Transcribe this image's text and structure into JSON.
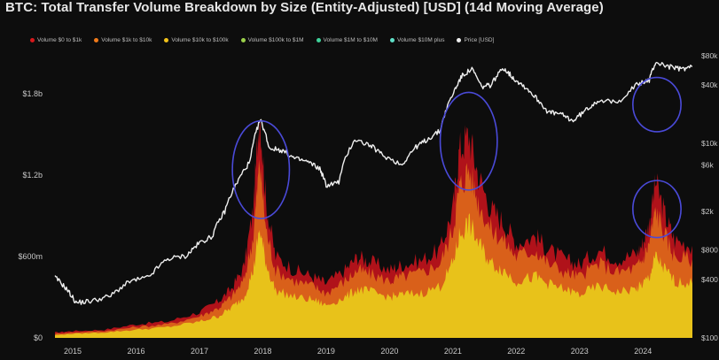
{
  "chart_data": {
    "type": "area",
    "title": "BTC: Total Transfer Volume Breakdown by Size (Entity-Adjusted) [USD] (14d Moving Average)",
    "legend": [
      {
        "name": "Volume $0 to $1k",
        "color": "#d7191c"
      },
      {
        "name": "Volume $1k to $10k",
        "color": "#f07a1a"
      },
      {
        "name": "Volume $10k to $100k",
        "color": "#f2c21a"
      },
      {
        "name": "Volume $100k to $1M",
        "color": "#9bd04a"
      },
      {
        "name": "Volume $1M to $10M",
        "color": "#3fd29a"
      },
      {
        "name": "Volume $10M plus",
        "color": "#5fe0c8"
      },
      {
        "name": "Price [USD]",
        "color": "#eeeeee"
      }
    ],
    "legend_placement": "top-left",
    "x_tick_labels": [
      "2015",
      "2016",
      "2017",
      "2018",
      "2019",
      "2020",
      "2021",
      "2022",
      "2023",
      "2024"
    ],
    "x_ticks": [
      2015,
      2016,
      2017,
      2018,
      2019,
      2020,
      2021,
      2022,
      2023,
      2024
    ],
    "xlim": [
      2014.72,
      2024.78
    ],
    "y_left_tick_labels": [
      "$0",
      "$600m",
      "$1.2b",
      "$1.8b"
    ],
    "y_left_ticks": [
      0,
      0.6,
      1.2,
      1.8
    ],
    "y_left_unit": "billions USD",
    "ylim_left": [
      0,
      2.1
    ],
    "y_right_tick_labels": [
      "$100",
      "$400",
      "$800",
      "$2k",
      "$6k",
      "$10k",
      "$40k",
      "$80k"
    ],
    "y_right_ticks": [
      100,
      400,
      800,
      2000,
      6000,
      10000,
      40000,
      80000
    ],
    "ylim_right": [
      100,
      85000
    ],
    "y_right_scale": "log",
    "grid": false,
    "series": [
      {
        "name": "Volume $10k to $100k",
        "color": "#e8c21a",
        "x": [
          2014.72,
          2015.0,
          2015.5,
          2016.0,
          2016.5,
          2017.0,
          2017.3,
          2017.5,
          2017.7,
          2017.85,
          2017.95,
          2018.05,
          2018.2,
          2018.5,
          2018.8,
          2019.0,
          2019.3,
          2019.5,
          2019.7,
          2020.0,
          2020.2,
          2020.5,
          2020.8,
          2021.0,
          2021.1,
          2021.25,
          2021.4,
          2021.6,
          2021.8,
          2022.0,
          2022.3,
          2022.5,
          2022.8,
          2023.0,
          2023.3,
          2023.6,
          2023.9,
          2024.0,
          2024.1,
          2024.2,
          2024.35,
          2024.5,
          2024.78
        ],
        "values": [
          0.02,
          0.03,
          0.04,
          0.06,
          0.08,
          0.12,
          0.16,
          0.22,
          0.3,
          0.5,
          0.8,
          0.55,
          0.35,
          0.3,
          0.28,
          0.24,
          0.3,
          0.36,
          0.34,
          0.3,
          0.32,
          0.33,
          0.38,
          0.55,
          0.75,
          0.85,
          0.7,
          0.55,
          0.5,
          0.42,
          0.45,
          0.4,
          0.35,
          0.32,
          0.38,
          0.34,
          0.36,
          0.4,
          0.45,
          0.6,
          0.5,
          0.42,
          0.4
        ]
      },
      {
        "name": "Volume $1k to $10k",
        "color": "#d9601a",
        "x": [
          2014.72,
          2015.0,
          2015.5,
          2016.0,
          2016.5,
          2017.0,
          2017.3,
          2017.5,
          2017.7,
          2017.85,
          2017.95,
          2018.05,
          2018.2,
          2018.5,
          2018.8,
          2019.0,
          2019.3,
          2019.5,
          2019.7,
          2020.0,
          2020.2,
          2020.5,
          2020.8,
          2021.0,
          2021.1,
          2021.25,
          2021.4,
          2021.6,
          2021.8,
          2022.0,
          2022.3,
          2022.5,
          2022.8,
          2023.0,
          2023.3,
          2023.6,
          2023.9,
          2024.0,
          2024.1,
          2024.2,
          2024.35,
          2024.5,
          2024.78
        ],
        "values": [
          0.03,
          0.04,
          0.05,
          0.08,
          0.1,
          0.16,
          0.22,
          0.3,
          0.42,
          0.75,
          1.3,
          0.8,
          0.5,
          0.42,
          0.38,
          0.33,
          0.42,
          0.5,
          0.47,
          0.42,
          0.45,
          0.48,
          0.55,
          0.8,
          1.1,
          1.25,
          1.0,
          0.8,
          0.72,
          0.6,
          0.65,
          0.55,
          0.48,
          0.45,
          0.55,
          0.48,
          0.52,
          0.58,
          0.7,
          0.95,
          0.75,
          0.6,
          0.58
        ]
      },
      {
        "name": "Volume $0 to $1k",
        "color": "#b0121a",
        "x": [
          2014.72,
          2015.0,
          2015.5,
          2016.0,
          2016.5,
          2017.0,
          2017.3,
          2017.5,
          2017.7,
          2017.85,
          2017.95,
          2018.05,
          2018.2,
          2018.5,
          2018.8,
          2019.0,
          2019.3,
          2019.5,
          2019.7,
          2020.0,
          2020.2,
          2020.5,
          2020.8,
          2021.0,
          2021.1,
          2021.25,
          2021.4,
          2021.6,
          2021.8,
          2022.0,
          2022.3,
          2022.5,
          2022.8,
          2023.0,
          2023.3,
          2023.6,
          2023.9,
          2024.0,
          2024.1,
          2024.2,
          2024.35,
          2024.5,
          2024.78
        ],
        "values": [
          0.04,
          0.05,
          0.06,
          0.1,
          0.12,
          0.19,
          0.27,
          0.36,
          0.52,
          0.95,
          1.68,
          1.0,
          0.6,
          0.5,
          0.45,
          0.4,
          0.5,
          0.6,
          0.56,
          0.5,
          0.54,
          0.57,
          0.65,
          0.95,
          1.38,
          1.5,
          1.2,
          0.95,
          0.85,
          0.7,
          0.75,
          0.65,
          0.57,
          0.54,
          0.65,
          0.58,
          0.62,
          0.7,
          0.85,
          1.15,
          0.9,
          0.72,
          0.68
        ]
      },
      {
        "name": "Price [USD]",
        "color": "#eeeeee",
        "axis": "right",
        "x": [
          2014.72,
          2014.9,
          2015.05,
          2015.3,
          2015.6,
          2015.9,
          2016.2,
          2016.5,
          2016.8,
          2017.0,
          2017.2,
          2017.4,
          2017.6,
          2017.8,
          2017.96,
          2018.1,
          2018.3,
          2018.5,
          2018.7,
          2018.9,
          2019.0,
          2019.2,
          2019.45,
          2019.7,
          2019.9,
          2020.2,
          2020.4,
          2020.6,
          2020.8,
          2021.0,
          2021.15,
          2021.3,
          2021.45,
          2021.6,
          2021.8,
          2021.95,
          2022.1,
          2022.3,
          2022.5,
          2022.7,
          2022.9,
          2023.1,
          2023.3,
          2023.6,
          2023.9,
          2024.1,
          2024.2,
          2024.4,
          2024.6,
          2024.78
        ],
        "values": [
          420,
          320,
          230,
          240,
          270,
          380,
          420,
          650,
          700,
          950,
          1100,
          2000,
          4000,
          6500,
          17500,
          9000,
          8500,
          7000,
          6500,
          5500,
          3700,
          4000,
          11000,
          9500,
          7500,
          6000,
          9000,
          11000,
          13500,
          32000,
          50000,
          58000,
          38000,
          40000,
          60000,
          47000,
          40000,
          30000,
          21000,
          20000,
          17000,
          22000,
          28000,
          26000,
          40000,
          45000,
          68000,
          62000,
          58000,
          62000
        ]
      }
    ]
  },
  "annotations": [
    {
      "name": "highlight-2017-peak",
      "color": "#4a4ad8"
    },
    {
      "name": "highlight-2021-peak",
      "color": "#4a4ad8"
    },
    {
      "name": "highlight-2024-price",
      "color": "#4a4ad8"
    },
    {
      "name": "highlight-2024-volume",
      "color": "#4a4ad8"
    }
  ]
}
